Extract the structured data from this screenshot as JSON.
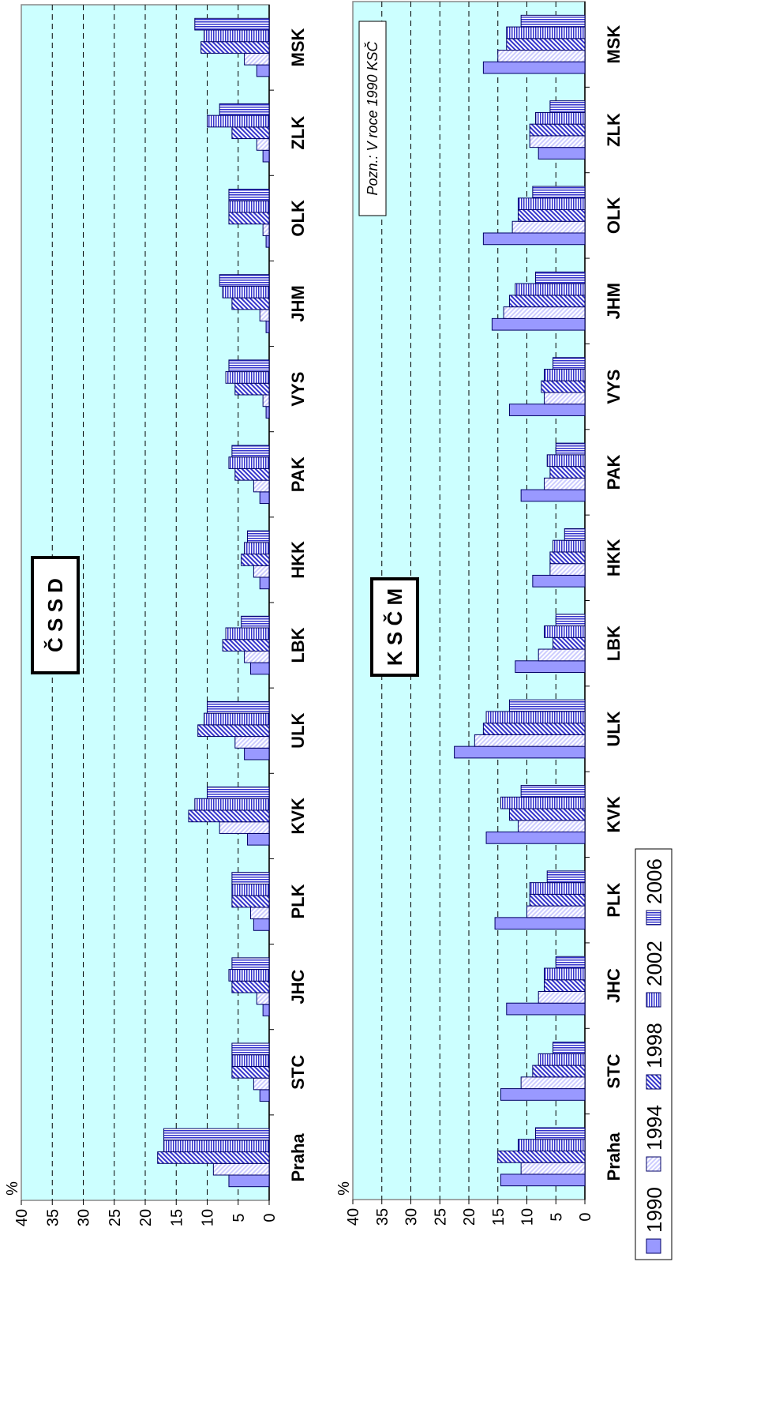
{
  "colors": {
    "plot_bg": "#ccffff",
    "bar_fill": "#9999ff",
    "bar_stroke": "#000066",
    "pattern_1994": "#ccccff",
    "pattern_1998": "#3333cc",
    "pattern_2002": "#3333cc",
    "pattern_2006": "#3333cc"
  },
  "legend": {
    "items": [
      {
        "label": "1990",
        "key": "p1990"
      },
      {
        "label": "1994",
        "key": "p1994"
      },
      {
        "label": "1998",
        "key": "p1998"
      },
      {
        "label": "2002",
        "key": "p2002"
      },
      {
        "label": "2006",
        "key": "p2006"
      }
    ]
  },
  "chart_data": [
    {
      "type": "bar",
      "orientation": "rotated-90-counterclockwise",
      "title": "Č S S D",
      "ylabel": "%",
      "ylim": [
        0,
        40
      ],
      "yticks": [
        "0",
        "5",
        "10",
        "15",
        "20",
        "25",
        "30",
        "35",
        "40"
      ],
      "grid": "dashed at 5-unit intervals",
      "categories": [
        "Praha",
        "STC",
        "JHC",
        "PLK",
        "KVK",
        "ULK",
        "LBK",
        "HKK",
        "PAK",
        "VYS",
        "JHM",
        "OLK",
        "ZLK",
        "MSK"
      ],
      "series": [
        {
          "name": "1990",
          "values": [
            6.5,
            1.5,
            1.0,
            2.5,
            3.5,
            4.0,
            3.0,
            1.5,
            1.5,
            0.5,
            0.5,
            0.5,
            1.0,
            2.0
          ]
        },
        {
          "name": "1994",
          "values": [
            9.0,
            2.5,
            2.0,
            3.0,
            8.0,
            5.5,
            4.0,
            2.5,
            2.5,
            1.0,
            1.5,
            1.0,
            2.0,
            4.0
          ]
        },
        {
          "name": "1998",
          "values": [
            18.0,
            6.0,
            6.0,
            6.0,
            13.0,
            11.5,
            7.5,
            4.5,
            5.5,
            5.5,
            6.0,
            6.5,
            6.0,
            11.0
          ]
        },
        {
          "name": "2002",
          "values": [
            17.0,
            6.0,
            6.5,
            6.0,
            12.0,
            10.5,
            7.0,
            4.0,
            6.5,
            7.0,
            7.5,
            6.5,
            10.0,
            10.5
          ]
        },
        {
          "name": "2006",
          "values": [
            17.0,
            6.0,
            6.0,
            6.0,
            10.0,
            10.0,
            4.5,
            3.5,
            6.0,
            6.5,
            8.0,
            6.5,
            8.0,
            12.0
          ]
        }
      ]
    },
    {
      "type": "bar",
      "orientation": "rotated-90-counterclockwise",
      "title": "K S Č M",
      "ylabel": "%",
      "ylim": [
        0,
        40
      ],
      "yticks": [
        "0",
        "5",
        "10",
        "15",
        "20",
        "25",
        "30",
        "35",
        "40"
      ],
      "grid": "dashed at 5-unit intervals",
      "annotation": "Pozn.: V roce 1990 KSČ",
      "categories": [
        "Praha",
        "STC",
        "JHC",
        "PLK",
        "KVK",
        "ULK",
        "LBK",
        "HKK",
        "PAK",
        "VYS",
        "JHM",
        "OLK",
        "ZLK",
        "MSK"
      ],
      "series": [
        {
          "name": "1990",
          "values": [
            14.5,
            14.5,
            13.5,
            15.5,
            17.0,
            22.5,
            12.0,
            9.0,
            11.0,
            13.0,
            16.0,
            17.5,
            8.0,
            17.5
          ]
        },
        {
          "name": "1994",
          "values": [
            11.0,
            11.0,
            8.0,
            10.0,
            11.5,
            19.0,
            8.0,
            6.0,
            7.0,
            7.0,
            14.0,
            12.5,
            9.5,
            15.0
          ]
        },
        {
          "name": "1998",
          "values": [
            15.0,
            9.0,
            7.0,
            9.5,
            13.0,
            17.5,
            5.5,
            6.0,
            6.0,
            7.5,
            13.0,
            11.5,
            9.5,
            13.5
          ]
        },
        {
          "name": "2002",
          "values": [
            11.5,
            8.0,
            7.0,
            9.5,
            14.5,
            17.0,
            7.0,
            5.5,
            6.5,
            7.0,
            12.0,
            11.5,
            8.5,
            13.5
          ]
        },
        {
          "name": "2006",
          "values": [
            8.5,
            5.5,
            5.0,
            6.5,
            11.0,
            13.0,
            5.0,
            3.5,
            5.0,
            5.5,
            8.5,
            9.0,
            6.0,
            11.0
          ]
        }
      ]
    }
  ]
}
